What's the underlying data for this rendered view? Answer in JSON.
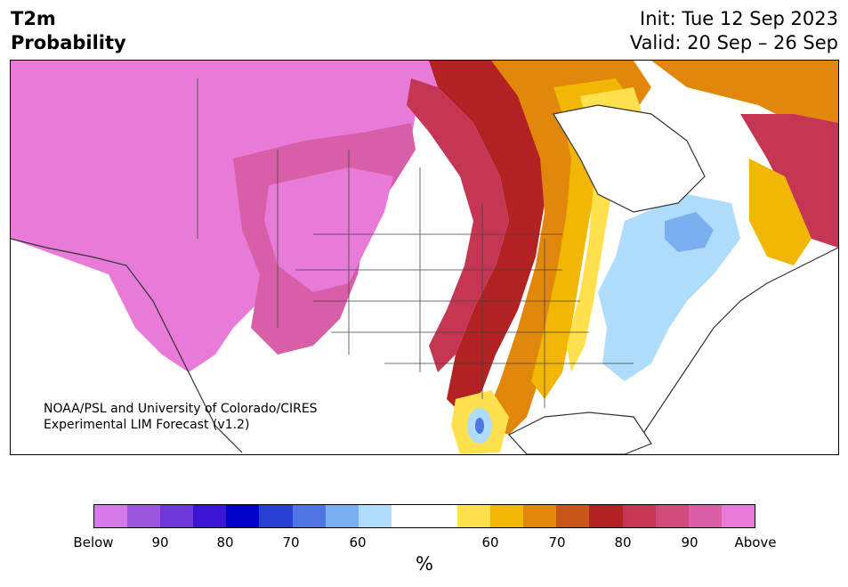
{
  "title": {
    "left_line1": "T2m",
    "left_line2": "Probability",
    "init": "Init: Tue 12 Sep 2023",
    "valid": "Valid: 20 Sep – 26 Sep"
  },
  "credit": {
    "line1": "NOAA/PSL and University of Colorado/CIRES",
    "line2": "Experimental LIM Forecast (v1.2)"
  },
  "colorbar": {
    "colors": [
      "#d57ae8",
      "#9d56e0",
      "#6e37d8",
      "#3a15d4",
      "#0101c8",
      "#2a3fd6",
      "#5075e4",
      "#7aaff0",
      "#aedcfa",
      "#ffffff",
      "#ffffff",
      "#ffe14d",
      "#f2b705",
      "#e0870c",
      "#c8561a",
      "#b22222",
      "#c53655",
      "#d04a7b",
      "#db5ea7",
      "#e87ad8"
    ],
    "labels": [
      "Below",
      "90",
      "80",
      "70",
      "60",
      "60",
      "70",
      "80",
      "90",
      "Above"
    ],
    "unit": "%"
  },
  "map": {
    "region": "North America",
    "fill_colors": {
      "above_high": "#e87ad8",
      "above_mid": "#d85ea8",
      "above_low": "#c53655",
      "warm_red": "#b22222",
      "warm_orange": "#e0870c",
      "warm_yellow": "#f2b705",
      "light_yellow": "#ffe14d",
      "cool_light": "#aedcfa",
      "cool_mid": "#7aaff0",
      "cool_dark": "#5075e4"
    }
  }
}
